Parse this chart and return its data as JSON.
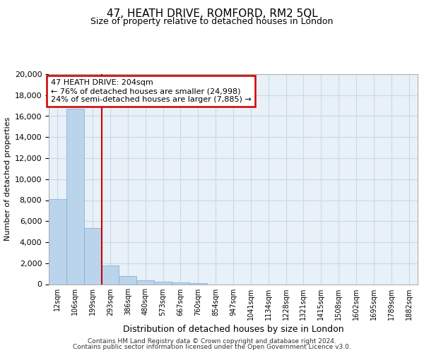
{
  "title_line1": "47, HEATH DRIVE, ROMFORD, RM2 5QL",
  "title_line2": "Size of property relative to detached houses in London",
  "xlabel": "Distribution of detached houses by size in London",
  "ylabel": "Number of detached properties",
  "bar_labels": [
    "12sqm",
    "106sqm",
    "199sqm",
    "293sqm",
    "386sqm",
    "480sqm",
    "573sqm",
    "667sqm",
    "760sqm",
    "854sqm",
    "947sqm",
    "1041sqm",
    "1134sqm",
    "1228sqm",
    "1321sqm",
    "1415sqm",
    "1508sqm",
    "1602sqm",
    "1695sqm",
    "1789sqm",
    "1882sqm"
  ],
  "bar_values": [
    8100,
    16700,
    5350,
    1750,
    750,
    350,
    220,
    200,
    130,
    0,
    0,
    0,
    0,
    0,
    0,
    0,
    0,
    0,
    0,
    0,
    0
  ],
  "bar_color": "#bad4eb",
  "bar_edge_color": "#7aadd4",
  "vline_color": "#cc0000",
  "vline_x": 2.5,
  "annotation_line1": "47 HEATH DRIVE: 204sqm",
  "annotation_line2": "← 76% of detached houses are smaller (24,998)",
  "annotation_line3": "24% of semi-detached houses are larger (7,885) →",
  "annotation_box_color": "#cc0000",
  "ylim": [
    0,
    20000
  ],
  "yticks": [
    0,
    2000,
    4000,
    6000,
    8000,
    10000,
    12000,
    14000,
    16000,
    18000,
    20000
  ],
  "grid_color": "#c8d8ea",
  "bg_color": "#e8f0f8",
  "footer_line1": "Contains HM Land Registry data © Crown copyright and database right 2024.",
  "footer_line2": "Contains public sector information licensed under the Open Government Licence v3.0."
}
